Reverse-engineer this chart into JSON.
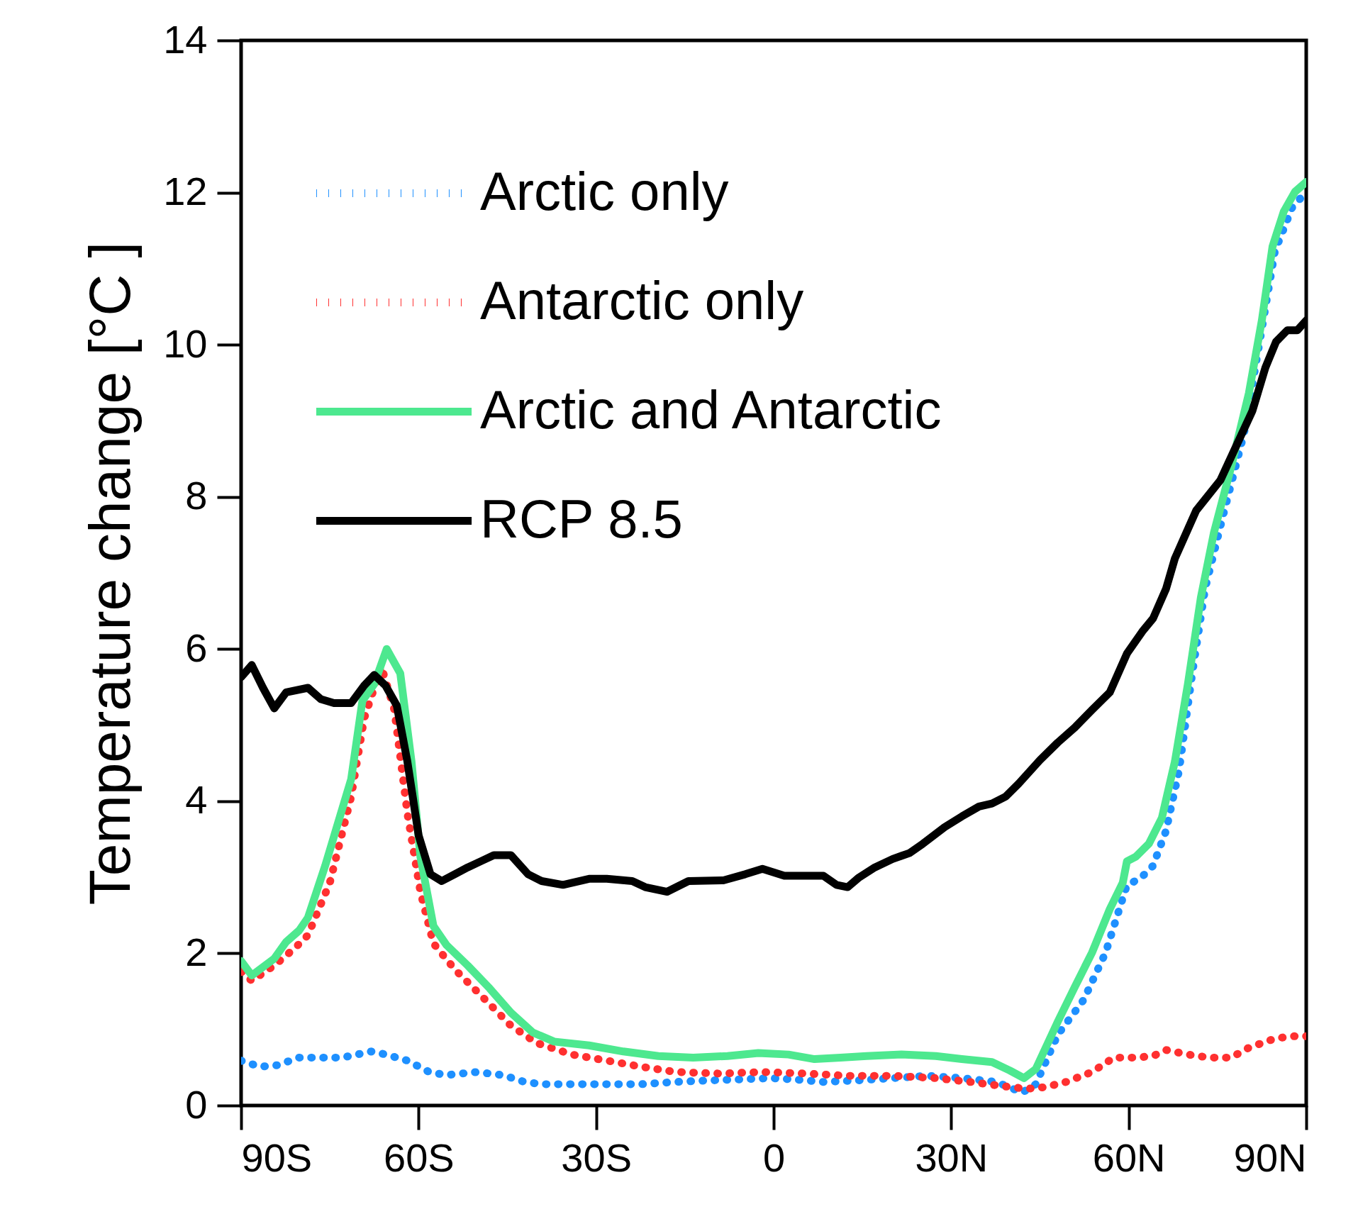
{
  "chart_data": {
    "type": "line",
    "ylabel": "Temperature change [°C ]",
    "xlim": [
      -90,
      90
    ],
    "xticks": [
      {
        "value": -90,
        "label": "90S"
      },
      {
        "value": -60,
        "label": "60S"
      },
      {
        "value": -30,
        "label": "30S"
      },
      0,
      {
        "value": 30,
        "label": "30N"
      },
      {
        "value": 60,
        "label": "60N"
      },
      {
        "value": 90,
        "label": "90N"
      }
    ],
    "ylim": [
      0,
      14
    ],
    "yticks": [
      0,
      2,
      4,
      6,
      8,
      10,
      12,
      14
    ],
    "grid": false,
    "legend": "top left",
    "marker": "none",
    "series": [
      {
        "name": "Arctic only",
        "color": "#1e90ff",
        "line_style": "dotted",
        "x": [
          -90,
          -86.8,
          -83.9,
          -80.2,
          -76.5,
          -72.9,
          -68,
          -65.5,
          -61.9,
          -58.2,
          -55.3,
          -50.2,
          -45.8,
          -42.1,
          -39.2,
          -34.1,
          -28.2,
          -22.4,
          -16.5,
          -10.7,
          -3.4,
          -0.5,
          3.9,
          8.4,
          14.2,
          20.1,
          25.9,
          31.8,
          37.6,
          42,
          44.3,
          48,
          52.4,
          56.1,
          59.7,
          61.9,
          64.1,
          66.3,
          68.5,
          70.7,
          72.9,
          75.8,
          79.5,
          82.5,
          84.7,
          87.6,
          90
        ],
        "values": [
          0.59,
          0.51,
          0.53,
          0.63,
          0.63,
          0.63,
          0.71,
          0.67,
          0.59,
          0.44,
          0.4,
          0.44,
          0.4,
          0.31,
          0.28,
          0.28,
          0.28,
          0.28,
          0.31,
          0.33,
          0.35,
          0.36,
          0.34,
          0.31,
          0.33,
          0.36,
          0.39,
          0.36,
          0.31,
          0.17,
          0.28,
          0.93,
          1.39,
          2.01,
          2.9,
          2.98,
          3.15,
          3.61,
          4.4,
          5.66,
          6.79,
          7.71,
          8.84,
          10.21,
          11.23,
          11.8,
          12.01
        ]
      },
      {
        "name": "Antarctic only",
        "color": "#ff3030",
        "line_style": "dotted",
        "x": [
          -90,
          -88.2,
          -84.4,
          -80.9,
          -78.7,
          -75,
          -71.4,
          -69.2,
          -66.3,
          -64.1,
          -61.9,
          -59.7,
          -57.5,
          -53.9,
          -49.5,
          -44.4,
          -40,
          -34.1,
          -28.2,
          -22.4,
          -16.5,
          -9.2,
          -1.9,
          5.4,
          12.7,
          20.1,
          27.4,
          33.2,
          39.2,
          42.8,
          45.8,
          49.4,
          53.8,
          57.5,
          61.2,
          64.1,
          66.3,
          70,
          73.6,
          77.3,
          80.3,
          84.7,
          87.6,
          90
        ],
        "values": [
          1.76,
          1.64,
          1.84,
          2.07,
          2.24,
          2.93,
          4.06,
          5.09,
          5.77,
          5.2,
          3.84,
          2.81,
          2.13,
          1.79,
          1.45,
          1.05,
          0.82,
          0.67,
          0.59,
          0.51,
          0.44,
          0.42,
          0.44,
          0.42,
          0.39,
          0.39,
          0.36,
          0.31,
          0.25,
          0.22,
          0.24,
          0.31,
          0.44,
          0.63,
          0.63,
          0.65,
          0.73,
          0.67,
          0.63,
          0.63,
          0.76,
          0.88,
          0.91,
          0.91
        ]
      },
      {
        "name": "Arctic and Antarctic",
        "color": "#4de88f",
        "line_style": "solid",
        "x": [
          -90,
          -88.2,
          -84.4,
          -82.4,
          -80.2,
          -78.7,
          -75.8,
          -73.6,
          -71.4,
          -69.5,
          -67.5,
          -65.4,
          -63.1,
          -61.2,
          -59.7,
          -57.5,
          -55.3,
          -51.7,
          -48,
          -44.4,
          -40.7,
          -37.1,
          -31.2,
          -25.4,
          -19.5,
          -13.6,
          -7.8,
          -2.6,
          2.5,
          6.9,
          11.3,
          15.7,
          21.6,
          27.4,
          31.8,
          36.9,
          39.9,
          42.3,
          44.3,
          48,
          50.9,
          53.8,
          56.8,
          59,
          59.7,
          61.2,
          63.4,
          65.6,
          67.8,
          70,
          72.2,
          74.4,
          77.3,
          80.3,
          82.5,
          84.3,
          86.2,
          88.1,
          90
        ],
        "values": [
          1.9,
          1.71,
          1.93,
          2.15,
          2.3,
          2.47,
          3.15,
          3.72,
          4.29,
          5.32,
          5.54,
          6.0,
          5.68,
          4.52,
          3.27,
          2.36,
          2.11,
          1.84,
          1.54,
          1.22,
          0.96,
          0.84,
          0.79,
          0.71,
          0.65,
          0.63,
          0.65,
          0.69,
          0.67,
          0.61,
          0.63,
          0.65,
          0.67,
          0.65,
          0.61,
          0.57,
          0.46,
          0.36,
          0.48,
          1.1,
          1.56,
          2.01,
          2.58,
          2.93,
          3.21,
          3.27,
          3.44,
          3.78,
          4.52,
          5.54,
          6.68,
          7.53,
          8.39,
          9.36,
          10.32,
          11.29,
          11.75,
          12.01,
          12.14
        ]
      },
      {
        "name": "RCP 8.5",
        "color": "#000000",
        "line_style": "solid",
        "x": [
          -90,
          -88.2,
          -86.3,
          -84.4,
          -82.4,
          -78.7,
          -76.5,
          -74.3,
          -71.4,
          -69.2,
          -67.5,
          -65.6,
          -63.7,
          -61.9,
          -60,
          -58,
          -56.1,
          -53.9,
          -51.7,
          -49.5,
          -47.3,
          -44.4,
          -41.5,
          -39.2,
          -35.6,
          -31.2,
          -28.2,
          -23.9,
          -21.7,
          -18,
          -14.4,
          -8.5,
          -4.8,
          -1.9,
          1.8,
          4.7,
          8.4,
          10.6,
          12.5,
          14.3,
          17.1,
          20.1,
          23,
          25.2,
          28.9,
          31.8,
          34.7,
          36.9,
          39.2,
          41.4,
          45,
          48,
          50.9,
          53.8,
          56.8,
          59.7,
          62.3,
          64.1,
          66.3,
          67.8,
          71.4,
          75.5,
          80.9,
          83.1,
          84.9,
          86.8,
          88.5,
          90
        ],
        "values": [
          5.63,
          5.79,
          5.49,
          5.22,
          5.43,
          5.49,
          5.34,
          5.29,
          5.29,
          5.52,
          5.66,
          5.52,
          5.26,
          4.52,
          3.55,
          3.04,
          2.95,
          3.04,
          3.13,
          3.21,
          3.29,
          3.29,
          3.04,
          2.95,
          2.9,
          2.98,
          2.98,
          2.95,
          2.87,
          2.81,
          2.95,
          2.96,
          3.04,
          3.11,
          3.02,
          3.02,
          3.02,
          2.9,
          2.87,
          2.99,
          3.13,
          3.24,
          3.32,
          3.44,
          3.66,
          3.8,
          3.93,
          3.97,
          4.06,
          4.23,
          4.54,
          4.77,
          4.97,
          5.2,
          5.43,
          5.94,
          6.23,
          6.4,
          6.79,
          7.19,
          7.82,
          8.22,
          9.13,
          9.7,
          10.04,
          10.19,
          10.19,
          10.32
        ]
      }
    ]
  }
}
